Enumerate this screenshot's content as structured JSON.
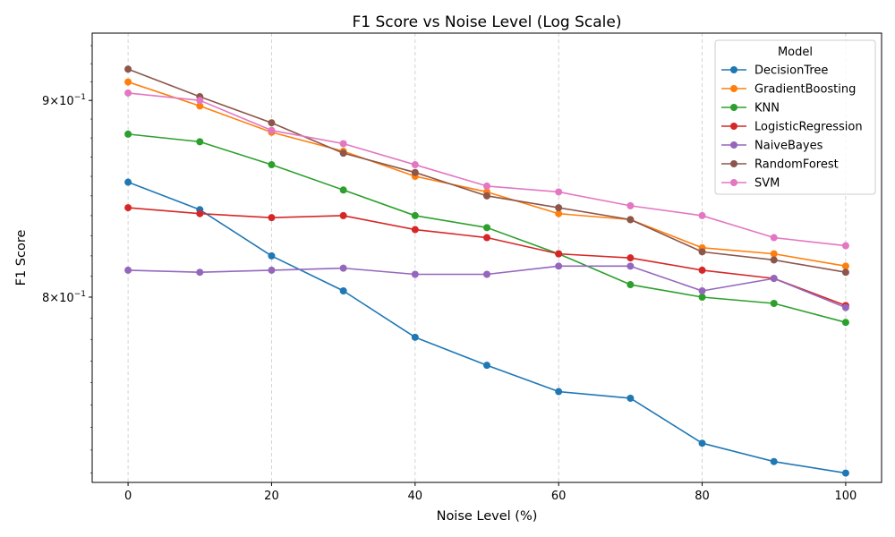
{
  "chart_data": {
    "type": "line",
    "title": "F1 Score vs Noise Level (Log Scale)",
    "xlabel": "Noise Level (%)",
    "ylabel": "F1 Score",
    "yscale": "log",
    "xlim": [
      -5,
      105
    ],
    "ylim": [
      0.716,
      0.937
    ],
    "x": [
      0,
      10,
      20,
      30,
      40,
      50,
      60,
      70,
      80,
      90,
      100
    ],
    "x_ticks": [
      0,
      20,
      40,
      60,
      80,
      100
    ],
    "x_tick_labels": [
      "0",
      "20",
      "40",
      "60",
      "80",
      "100"
    ],
    "y_ticks": [
      0.8,
      0.9
    ],
    "y_tick_base": "10",
    "y_tick_exponent": "−1",
    "y_tick_mantissas": [
      "8",
      "9"
    ],
    "grid": "x-dashed",
    "legend": {
      "title": "Model",
      "placement": "top-right"
    },
    "series": [
      {
        "name": "DecisionTree",
        "color": "#1f77b4",
        "values": [
          0.857,
          0.843,
          0.82,
          0.803,
          0.781,
          0.768,
          0.756,
          0.753,
          0.733,
          0.725,
          0.72
        ]
      },
      {
        "name": "GradientBoosting",
        "color": "#ff7f0e",
        "values": [
          0.91,
          0.897,
          0.883,
          0.873,
          0.86,
          0.852,
          0.841,
          0.838,
          0.824,
          0.821,
          0.815
        ]
      },
      {
        "name": "KNN",
        "color": "#2ca02c",
        "values": [
          0.882,
          0.878,
          0.866,
          0.853,
          0.84,
          0.834,
          0.821,
          0.806,
          0.8,
          0.797,
          0.788
        ]
      },
      {
        "name": "LogisticRegression",
        "color": "#d62728",
        "values": [
          0.844,
          0.841,
          0.839,
          0.84,
          0.833,
          0.829,
          0.821,
          0.819,
          0.813,
          0.809,
          0.796
        ]
      },
      {
        "name": "NaiveBayes",
        "color": "#9467bd",
        "values": [
          0.813,
          0.812,
          0.813,
          0.814,
          0.811,
          0.811,
          0.815,
          0.815,
          0.803,
          0.809,
          0.795
        ]
      },
      {
        "name": "RandomForest",
        "color": "#8c564b",
        "values": [
          0.917,
          0.902,
          0.888,
          0.872,
          0.862,
          0.85,
          0.844,
          0.838,
          0.822,
          0.818,
          0.812
        ]
      },
      {
        "name": "SVM",
        "color": "#e377c2",
        "values": [
          0.904,
          0.9,
          0.884,
          0.877,
          0.866,
          0.855,
          0.852,
          0.845,
          0.84,
          0.829,
          0.825
        ]
      }
    ]
  }
}
